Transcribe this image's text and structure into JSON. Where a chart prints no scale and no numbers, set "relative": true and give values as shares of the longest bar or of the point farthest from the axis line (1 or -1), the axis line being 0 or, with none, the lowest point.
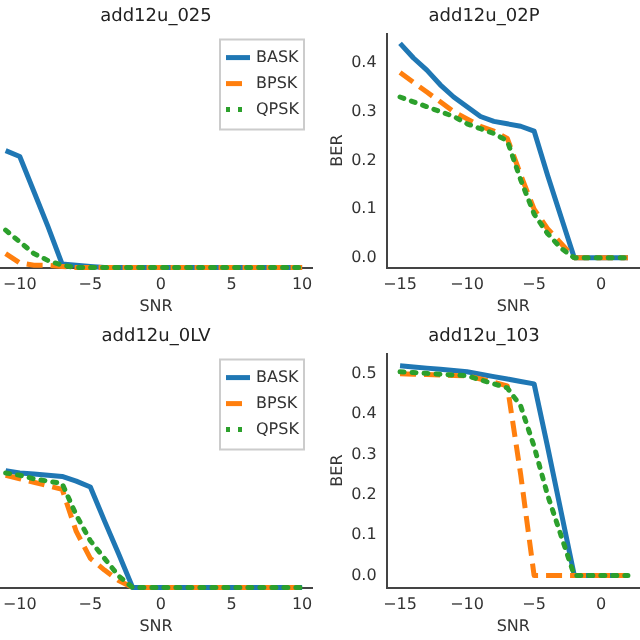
{
  "chart_data": [
    {
      "type": "line",
      "title": "add12u_025",
      "xlabel": "SNR",
      "relative": true,
      "legend": "top right",
      "grid": false,
      "x": [
        -11,
        -10,
        -9,
        -8,
        -7,
        -6,
        -5,
        -4,
        -3,
        -2,
        -1,
        0,
        1,
        2,
        3,
        4,
        5,
        6,
        7,
        8,
        9,
        10
      ],
      "xlim": [
        -11.4,
        10.7
      ],
      "xticks": [
        -10,
        -5,
        0,
        5,
        10
      ],
      "series": [
        {
          "name": "BASK",
          "color": "#1f77b4",
          "line_style": "solid",
          "values": [
            1,
            0.95,
            0.65,
            0.35,
            0.03,
            0.02,
            0.01,
            0,
            0,
            0,
            0,
            0,
            0,
            0,
            0,
            0,
            0,
            0,
            0,
            0,
            0,
            0
          ]
        },
        {
          "name": "BPSK",
          "color": "#ff7f0e",
          "line_style": "dashed",
          "values": [
            0.12,
            0.04,
            0.02,
            0.02,
            0.01,
            0,
            0,
            0,
            0,
            0,
            0,
            0,
            0,
            0,
            0,
            0,
            0,
            0,
            0,
            0,
            0,
            0
          ]
        },
        {
          "name": "QPSK",
          "color": "#2ca02c",
          "line_style": "dotted",
          "values": [
            0.32,
            0.22,
            0.12,
            0.06,
            0.02,
            0,
            0,
            0,
            0,
            0,
            0,
            0,
            0,
            0,
            0,
            0,
            0,
            0,
            0,
            0,
            0,
            0
          ]
        }
      ]
    },
    {
      "type": "line",
      "title": "add12u_02P",
      "xlabel": "SNR",
      "ylabel": "BER",
      "grid": false,
      "x": [
        -15,
        -14,
        -13,
        -12,
        -11,
        -10,
        -9,
        -8,
        -7,
        -6,
        -5,
        -4,
        -3,
        -2,
        -1,
        0,
        1,
        2
      ],
      "xlim": [
        -16,
        2.9
      ],
      "xticks": [
        -15,
        -10,
        -5,
        0
      ],
      "ylim": [
        -0.02,
        0.46
      ],
      "yticks": [
        {
          "value": 0,
          "label": "0.0"
        },
        0.1,
        0.2,
        0.3,
        0.4
      ],
      "series": [
        {
          "color": "#1f77b4",
          "line_style": "solid",
          "values": [
            0.44,
            0.41,
            0.385,
            0.355,
            0.33,
            0.31,
            0.29,
            0.28,
            0.275,
            0.27,
            0.26,
            0.17,
            0.085,
            0,
            0,
            0,
            0,
            0
          ]
        },
        {
          "color": "#ff7f0e",
          "line_style": "dashed",
          "values": [
            0.38,
            0.36,
            0.34,
            0.32,
            0.3,
            0.285,
            0.27,
            0.26,
            0.245,
            0.17,
            0.1,
            0.06,
            0.03,
            0,
            0,
            0,
            0,
            0
          ]
        },
        {
          "color": "#2ca02c",
          "line_style": "dotted",
          "values": [
            0.33,
            0.32,
            0.31,
            0.3,
            0.29,
            0.275,
            0.265,
            0.255,
            0.24,
            0.16,
            0.09,
            0.05,
            0.02,
            0,
            0,
            0,
            0,
            0
          ]
        }
      ]
    },
    {
      "type": "line",
      "title": "add12u_0LV",
      "xlabel": "SNR",
      "relative": true,
      "legend": "top right",
      "grid": false,
      "x": [
        -11,
        -10,
        -9,
        -8,
        -7,
        -6,
        -5,
        -4,
        -3,
        -2,
        -1,
        0,
        1,
        2,
        3,
        4,
        5,
        6,
        7,
        8,
        9,
        10
      ],
      "xlim": [
        -11.4,
        10.7
      ],
      "xticks": [
        -10,
        -5,
        0,
        5,
        10
      ],
      "series": [
        {
          "name": "BASK",
          "color": "#1f77b4",
          "line_style": "solid",
          "values": [
            1,
            0.98,
            0.97,
            0.96,
            0.95,
            0.91,
            0.86,
            0.57,
            0.29,
            0,
            0,
            0,
            0,
            0,
            0,
            0,
            0,
            0,
            0,
            0,
            0,
            0
          ]
        },
        {
          "name": "BPSK",
          "color": "#ff7f0e",
          "line_style": "dashed",
          "values": [
            0.96,
            0.93,
            0.9,
            0.87,
            0.84,
            0.48,
            0.25,
            0.15,
            0.06,
            0,
            0,
            0,
            0,
            0,
            0,
            0,
            0,
            0,
            0,
            0,
            0,
            0
          ]
        },
        {
          "name": "QPSK",
          "color": "#2ca02c",
          "line_style": "dotted",
          "values": [
            0.98,
            0.96,
            0.93,
            0.91,
            0.89,
            0.62,
            0.4,
            0.25,
            0.1,
            0,
            0,
            0,
            0,
            0,
            0,
            0,
            0,
            0,
            0,
            0,
            0,
            0
          ]
        }
      ]
    },
    {
      "type": "line",
      "title": "add12u_103",
      "xlabel": "SNR",
      "ylabel": "BER",
      "grid": false,
      "x": [
        -15,
        -14,
        -13,
        -12,
        -11,
        -10,
        -9,
        -8,
        -7,
        -6,
        -5,
        -4,
        -3,
        -2,
        -1,
        0,
        1,
        2
      ],
      "xlim": [
        -16,
        2.9
      ],
      "xticks": [
        -15,
        -10,
        -5,
        0
      ],
      "ylim": [
        -0.03,
        0.55
      ],
      "yticks": [
        {
          "value": 0,
          "label": "0.0"
        },
        0.1,
        0.2,
        0.3,
        0.4,
        0.5
      ],
      "series": [
        {
          "color": "#1f77b4",
          "line_style": "solid",
          "values": [
            0.52,
            0.517,
            0.514,
            0.511,
            0.508,
            0.505,
            0.499,
            0.493,
            0.487,
            0.481,
            0.475,
            0.32,
            0.16,
            0,
            0,
            0,
            0,
            0
          ]
        },
        {
          "color": "#ff7f0e",
          "line_style": "dashed",
          "values": [
            0.5,
            0.499,
            0.498,
            0.497,
            0.496,
            0.495,
            0.487,
            0.479,
            0.47,
            0.25,
            0,
            0,
            0,
            0,
            0,
            0,
            0,
            0
          ]
        },
        {
          "color": "#2ca02c",
          "line_style": "dotted",
          "values": [
            0.505,
            0.503,
            0.501,
            0.499,
            0.497,
            0.495,
            0.485,
            0.475,
            0.465,
            0.42,
            0.32,
            0.2,
            0.1,
            0,
            0,
            0,
            0,
            0
          ]
        }
      ]
    }
  ]
}
